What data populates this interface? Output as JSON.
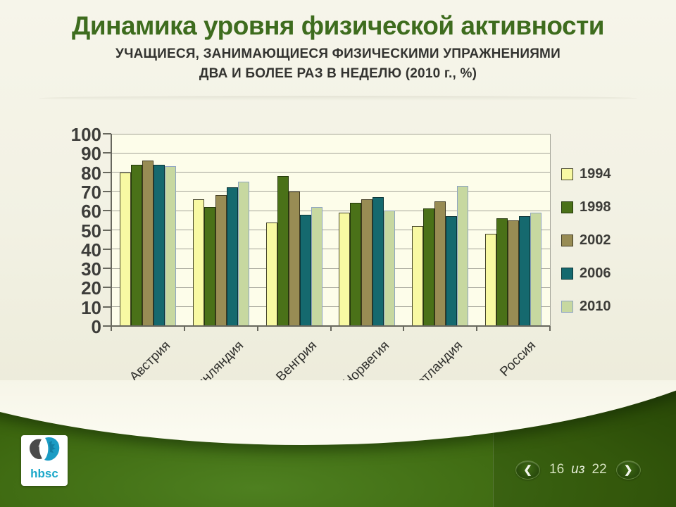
{
  "slide": {
    "title": "Динамика уровня физической активности",
    "subtitle_line1": "УЧАЩИЕСЯ, ЗАНИМАЮЩИЕСЯ ФИЗИЧЕСКИМИ УПРАЖНЕНИЯМИ",
    "subtitle_line2": "ДВА И БОЛЕЕ РАЗ В НЕДЕЛЮ (2010 г., %)",
    "accent_color": "#3e6c1e"
  },
  "chart_data": {
    "type": "bar",
    "title": "",
    "xlabel": "",
    "ylabel": "",
    "categories": [
      "Австрия",
      "Финляндия",
      "Венгрия",
      "Норвегия",
      "Шотландия",
      "Россия"
    ],
    "series": [
      {
        "name": "1994",
        "color": "#f8f9a3",
        "border": "#45452a",
        "values": [
          80,
          66,
          54,
          59,
          52,
          48
        ]
      },
      {
        "name": "1998",
        "color": "#4a7118",
        "border": "#24380b",
        "values": [
          84,
          62,
          78,
          64,
          61,
          56
        ]
      },
      {
        "name": "2002",
        "color": "#988c54",
        "border": "#403a21",
        "values": [
          86,
          68,
          70,
          66,
          65,
          55
        ]
      },
      {
        "name": "2006",
        "color": "#15696e",
        "border": "#093437",
        "values": [
          84,
          72,
          58,
          67,
          57,
          57
        ]
      },
      {
        "name": "2010",
        "color": "#c7d8a0",
        "border": "#8ea4c2",
        "values": [
          83,
          75,
          62,
          60,
          73,
          59
        ]
      }
    ],
    "ylim": [
      0,
      100
    ],
    "ytick_step": 10,
    "grid": true,
    "legend_position": "right",
    "plot_bg": "#fdfdea",
    "grid_color": "#a3a398",
    "axis_color": "#68685e"
  },
  "footer": {
    "logo": {
      "text": "hbsc",
      "color": "#1ba7c9"
    },
    "nav": {
      "prev_icon": "❮",
      "next_icon": "❯",
      "current": "16",
      "separator": "из",
      "total": "22"
    }
  }
}
